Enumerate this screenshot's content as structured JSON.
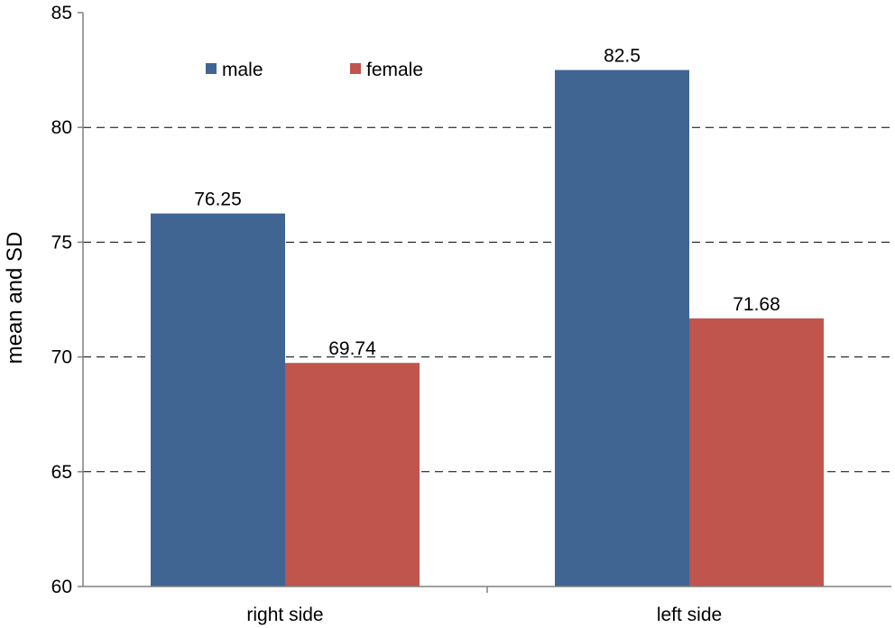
{
  "chart_data": {
    "type": "bar",
    "title": "",
    "xlabel": "",
    "ylabel": "mean and SD",
    "ylim": [
      60,
      85
    ],
    "yticks": [
      60,
      65,
      70,
      75,
      80,
      85
    ],
    "categories": [
      "right side",
      "left side"
    ],
    "series": [
      {
        "name": "male",
        "values": [
          76.25,
          82.5
        ],
        "labels": [
          "76.25",
          "82.5"
        ],
        "color": "#406593"
      },
      {
        "name": "female",
        "values": [
          69.74,
          71.68
        ],
        "labels": [
          "69.74",
          "71.68"
        ],
        "color": "#c0554d"
      }
    ],
    "grid": "dashed horizontal",
    "legend": "top-left"
  }
}
